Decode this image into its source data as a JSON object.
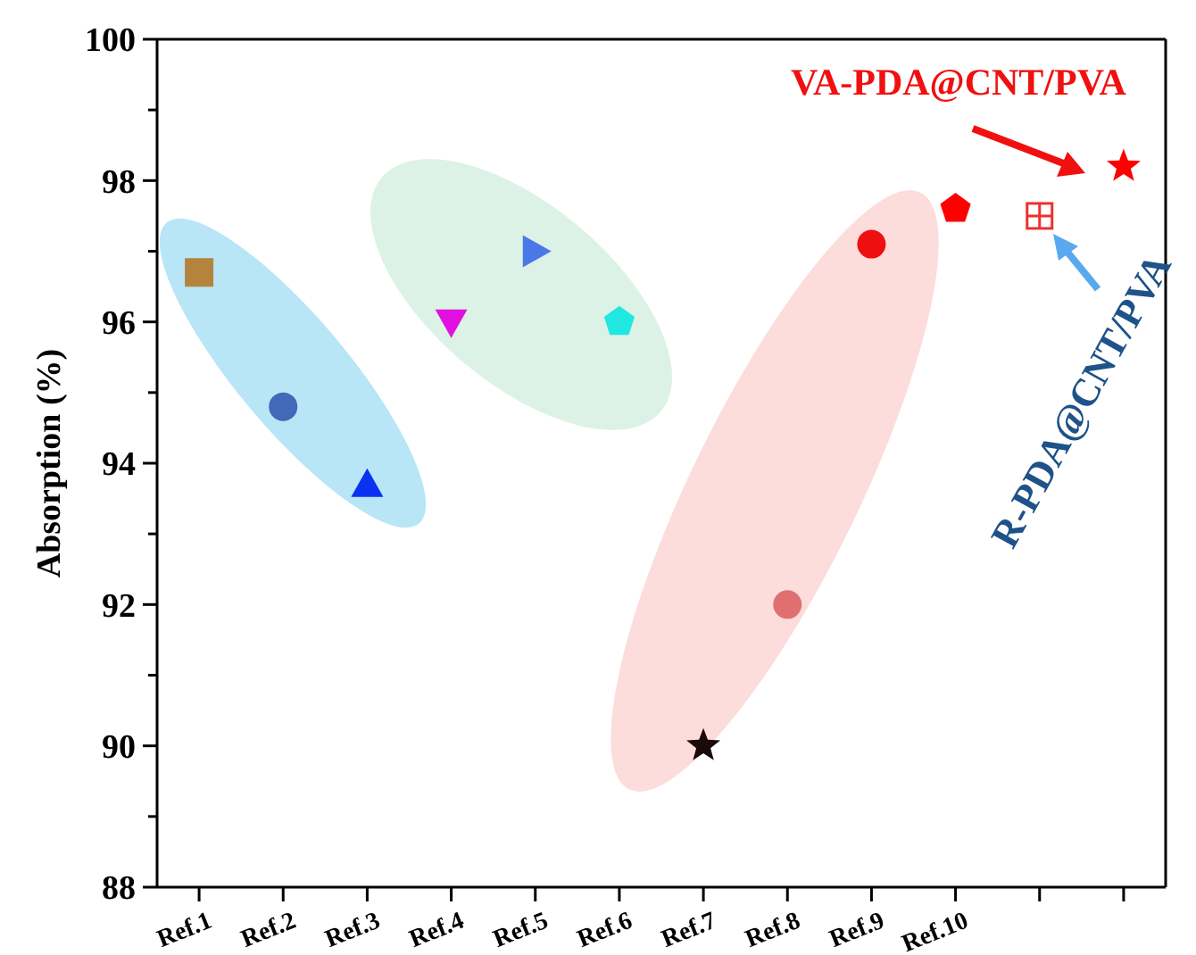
{
  "chart_data": {
    "type": "scatter",
    "ylabel": "Absorption (%)",
    "categories": [
      "Ref.1",
      "Ref.2",
      "Ref.3",
      "Ref.4",
      "Ref.5",
      "Ref.6",
      "Ref.7",
      "Ref.8",
      "Ref.9",
      "Ref.10",
      null,
      null
    ],
    "ylim": [
      88,
      100
    ],
    "yticks": [
      88,
      {
        "value": 89,
        "label": null
      },
      90,
      {
        "value": 91,
        "label": null
      },
      92,
      {
        "value": 93,
        "label": null
      },
      94,
      {
        "value": 95,
        "label": null
      },
      96,
      {
        "value": 97,
        "label": null
      },
      98,
      {
        "value": 99,
        "label": null
      },
      100
    ],
    "grid": false,
    "legend": false,
    "series": [
      {
        "marker": "square",
        "color": "#b5843c",
        "values": [
          96.7,
          null,
          null,
          null,
          null,
          null,
          null,
          null,
          null,
          null,
          null,
          null
        ]
      },
      {
        "marker": "circle",
        "color": "#4169b8",
        "values": [
          null,
          94.8,
          null,
          null,
          null,
          null,
          null,
          null,
          null,
          null,
          null,
          null
        ]
      },
      {
        "marker": "triangle",
        "color": "#0a32f0",
        "values": [
          null,
          null,
          93.7,
          null,
          null,
          null,
          null,
          null,
          null,
          null,
          null,
          null
        ]
      },
      {
        "marker": "triangle-down",
        "color": "#e010e0",
        "values": [
          null,
          null,
          null,
          96.0,
          null,
          null,
          null,
          null,
          null,
          null,
          null,
          null
        ]
      },
      {
        "marker": "triangle-right",
        "color": "#4a78e6",
        "values": [
          null,
          null,
          null,
          null,
          97.0,
          null,
          null,
          null,
          null,
          null,
          null,
          null
        ]
      },
      {
        "color": "#20e8e0",
        "values": [
          null,
          null,
          null,
          null,
          null,
          96.0,
          null,
          null,
          null,
          null,
          null,
          null
        ]
      },
      {
        "marker": "star",
        "color": "#1a0a0a",
        "values": [
          null,
          null,
          null,
          null,
          null,
          null,
          90.0,
          null,
          null,
          null,
          null,
          null
        ]
      },
      {
        "marker": "circle",
        "color": "#e07070",
        "values": [
          null,
          null,
          null,
          null,
          null,
          null,
          null,
          92.0,
          null,
          null,
          null,
          null
        ]
      },
      {
        "marker": "circle",
        "color": "#ee1010",
        "values": [
          null,
          null,
          null,
          null,
          null,
          null,
          null,
          null,
          97.1,
          null,
          null,
          null
        ]
      },
      {
        "color": "#ff0000",
        "values": [
          null,
          null,
          null,
          null,
          null,
          null,
          null,
          null,
          null,
          97.6,
          null,
          null
        ]
      },
      {
        "marker": "square-cross",
        "color": "#ee3030",
        "values": [
          null,
          null,
          null,
          null,
          null,
          null,
          null,
          null,
          null,
          null,
          97.5,
          null
        ]
      },
      {
        "marker": "star",
        "color": "#ff0000",
        "values": [
          null,
          null,
          null,
          null,
          null,
          null,
          null,
          null,
          null,
          null,
          null,
          98.2
        ]
      }
    ],
    "annotations": [
      "VA-PDA@CNT/PVA",
      "R-PDA@CNT/PVA"
    ]
  }
}
